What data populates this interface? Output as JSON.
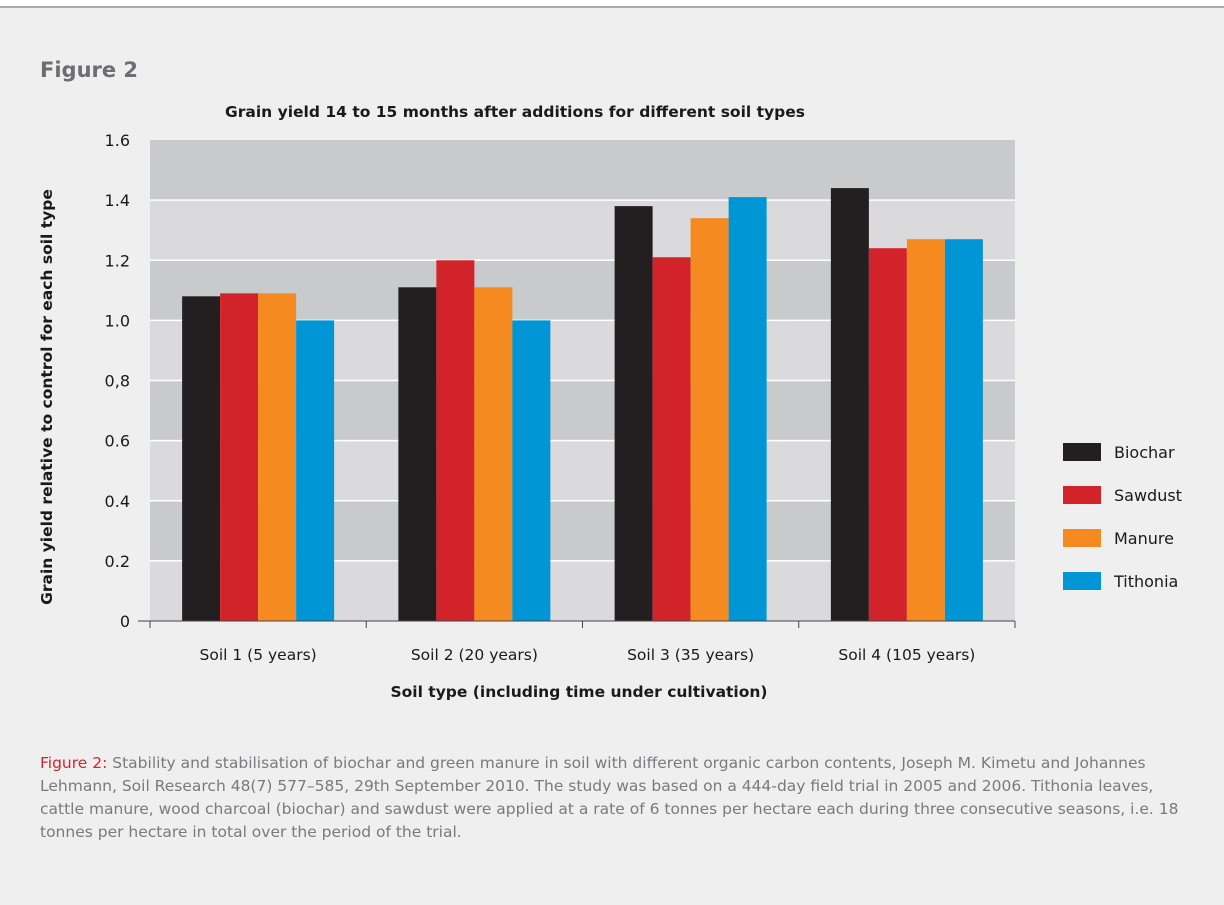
{
  "figure_label": "Figure 2",
  "caption": {
    "lead": "Figure 2:",
    "text": " Stability and stabilisation of biochar and green manure in soil with different organic carbon contents, Joseph M. Kimetu and Johannes Lehmann, Soil Research 48(7) 577–585, 29th September 2010. The study was based on a 444-day field trial in 2005 and 2006. Tithonia leaves, cattle manure, wood charcoal (biochar) and sawdust were applied at a rate of 6 tonnes per hectare each during three consecutive seasons, i.e. 18 tonnes per hectare in total over the period of the trial."
  },
  "colors": {
    "plot_band_light": "#dadadc",
    "plot_band_dark": "#c9cacc",
    "grid": "#ffffff",
    "axis": "#444444",
    "text": "#1a1a1a"
  },
  "chart_data": {
    "type": "bar",
    "title": "Grain yield 14 to 15 months after additions for different soil types",
    "xlabel": "Soil type (including time under cultivation)",
    "ylabel": "Grain yield relative to control for each soil type",
    "ylim": [
      0,
      1.6
    ],
    "yticks": [
      "0",
      "0.2",
      "0.4",
      "0.6",
      "0,8",
      "1.0",
      "1.2",
      "1.4",
      "1.6"
    ],
    "grid": true,
    "legend_position": "right",
    "categories": [
      "Soil 1 (5 years)",
      "Soil 2 (20 years)",
      "Soil 3 (35 years)",
      "Soil 4 (105 years)"
    ],
    "series": [
      {
        "name": "Biochar",
        "color": "#231f20",
        "values": [
          1.08,
          1.11,
          1.38,
          1.44
        ]
      },
      {
        "name": "Sawdust",
        "color": "#d2232a",
        "values": [
          1.09,
          1.2,
          1.21,
          1.24
        ]
      },
      {
        "name": "Manure",
        "color": "#f48a20",
        "values": [
          1.09,
          1.11,
          1.34,
          1.27
        ]
      },
      {
        "name": "Tithonia",
        "color": "#0096d6",
        "values": [
          1.0,
          1.0,
          1.41,
          1.27
        ]
      }
    ]
  }
}
